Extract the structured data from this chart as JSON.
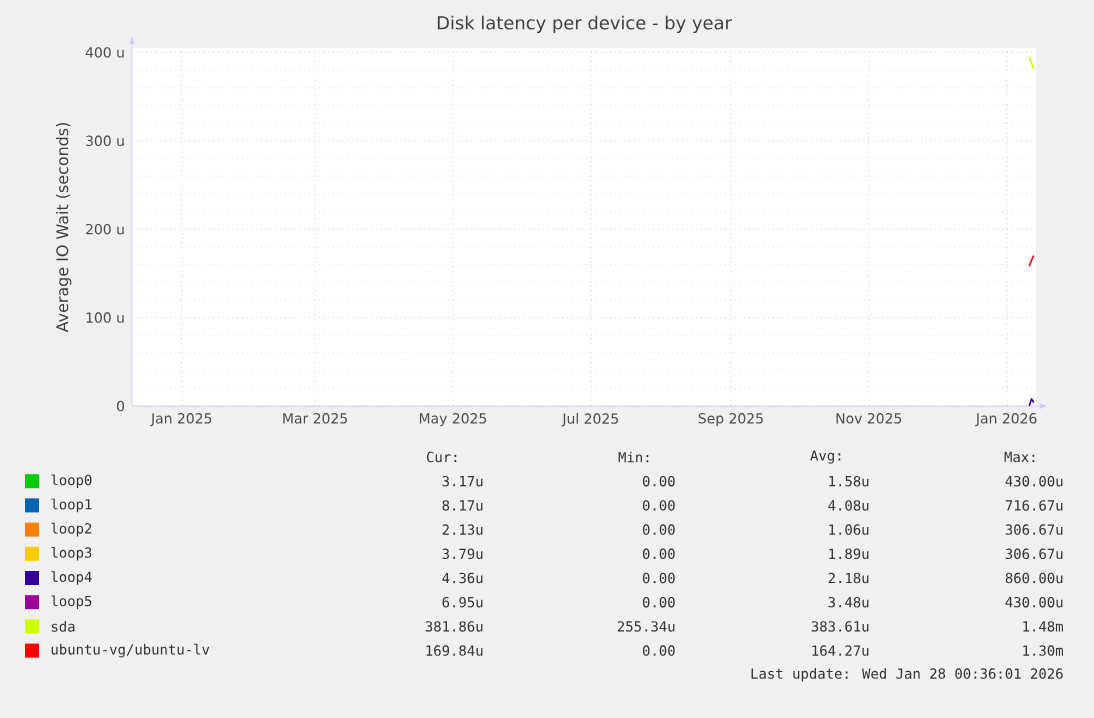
{
  "chart_data": {
    "type": "line",
    "title": "Disk latency per device - by year",
    "ylabel": "Average IO Wait (seconds)",
    "xlim": [
      "2024-12-10",
      "2026-01-14"
    ],
    "xticks": [
      {
        "value": "2025-01-01",
        "label": "Jan 2025"
      },
      {
        "value": "2025-03-01",
        "label": "Mar 2025"
      },
      {
        "value": "2025-05-01",
        "label": "May 2025"
      },
      {
        "value": "2025-07-01",
        "label": "Jul 2025"
      },
      {
        "value": "2025-09-01",
        "label": "Sep 2025"
      },
      {
        "value": "2025-11-01",
        "label": "Nov 2025"
      },
      {
        "value": "2026-01-01",
        "label": "Jan 2026"
      }
    ],
    "ylim": [
      0,
      405
    ],
    "yticks": [
      {
        "value": 0,
        "label": "0"
      },
      {
        "value": 100,
        "label": "100 u"
      },
      {
        "value": 200,
        "label": "200 u"
      },
      {
        "value": 300,
        "label": "300 u"
      },
      {
        "value": 400,
        "label": "400 u"
      }
    ],
    "grid": true,
    "legend": "bottom",
    "series": [
      {
        "name": "loop0",
        "color": "#00cc00"
      },
      {
        "name": "loop1",
        "color": "#0066b3"
      },
      {
        "name": "loop2",
        "color": "#ff8000"
      },
      {
        "name": "loop3",
        "color": "#ffcc00"
      },
      {
        "name": "loop4",
        "color": "#330099",
        "x": [
          "2026-01-11",
          "2026-01-12",
          "2026-01-13"
        ],
        "values": [
          0,
          8,
          4
        ]
      },
      {
        "name": "loop5",
        "color": "#990099"
      },
      {
        "name": "sda",
        "color": "#ccff00",
        "x": [
          "2026-01-11",
          "2026-01-12",
          "2026-01-13"
        ],
        "values": [
          395,
          388,
          382
        ]
      },
      {
        "name": "ubuntu-vg/ubuntu-lv",
        "color": "#ff0000",
        "x": [
          "2026-01-11",
          "2026-01-12",
          "2026-01-13"
        ],
        "values": [
          158,
          165,
          170
        ]
      }
    ],
    "annotations": [
      "Cur:",
      "Min:",
      "Avg:",
      "Max:",
      "3.17u",
      "0.00",
      "1.58u",
      "430.00u",
      "8.17u",
      "0.00",
      "4.08u",
      "716.67u",
      "2.13u",
      "0.00",
      "1.06u",
      "306.67u",
      "3.79u",
      "0.00",
      "1.89u",
      "306.67u",
      "4.36u",
      "0.00",
      "2.18u",
      "860.00u",
      "6.95u",
      "0.00",
      "3.48u",
      "430.00u",
      "381.86u",
      "255.34u",
      "383.61u",
      "1.48m",
      "169.84u",
      "0.00",
      "164.27u",
      "1.30m",
      "Last update: Wed Jan 28 00:36:01 2026"
    ]
  }
}
